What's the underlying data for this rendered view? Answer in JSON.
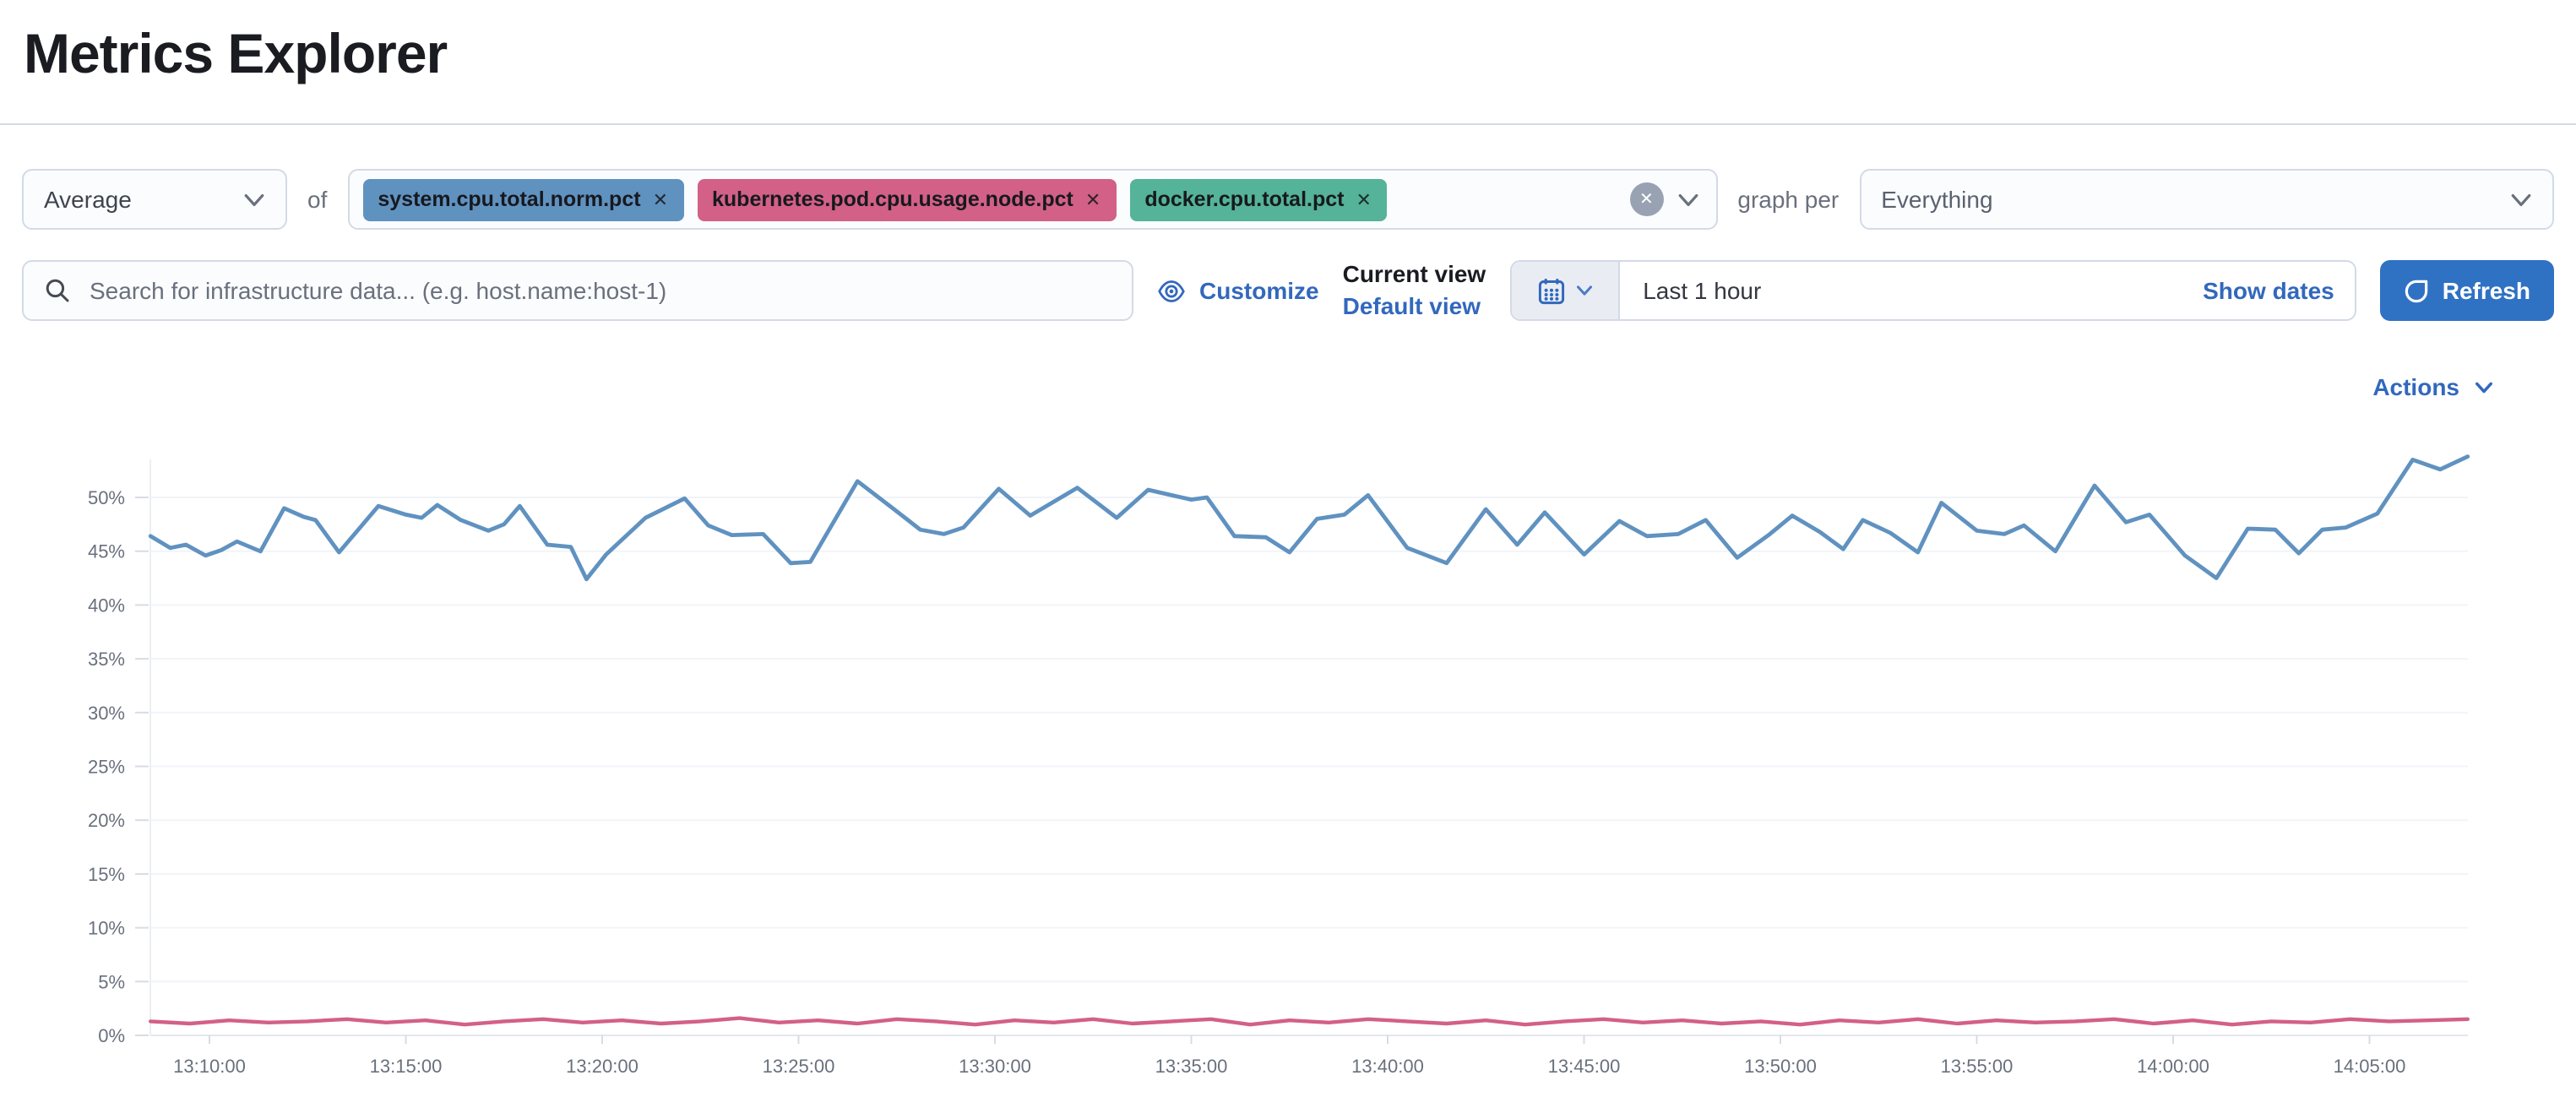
{
  "page": {
    "title": "Metrics Explorer"
  },
  "toolbar": {
    "aggregation": {
      "selected": "Average"
    },
    "of_label": "of",
    "metrics": [
      {
        "label": "system.cpu.total.norm.pct",
        "color": "#6092C0",
        "remove_icon": "cross"
      },
      {
        "label": "kubernetes.pod.cpu.usage.node.pct",
        "color": "#D36086",
        "remove_icon": "cross"
      },
      {
        "label": "docker.cpu.total.pct",
        "color": "#54B399",
        "remove_icon": "cross"
      }
    ],
    "clear_all_icon": "cross-in-circle",
    "graph_per_label": "graph per",
    "group_by": {
      "selected": "Everything"
    }
  },
  "searchbar": {
    "placeholder": "Search for infrastructure data... (e.g. host.name:host-1)",
    "value": "",
    "search_icon": "magnifier",
    "customize_label": "Customize",
    "customize_icon": "eye",
    "current_view_label": "Current view",
    "default_view_label": "Default view",
    "time_picker": {
      "calendar_icon": "calendar",
      "chevron_icon": "chevron-down",
      "range_display": "Last 1 hour",
      "show_dates_label": "Show dates"
    },
    "refresh_label": "Refresh",
    "refresh_icon": "refresh-arrow"
  },
  "chart_header": {
    "actions_label": "Actions",
    "actions_icon": "chevron-down"
  },
  "colors": {
    "link_blue": "#3268bd",
    "button_blue": "#2f72c4",
    "tag_blue": "#6092C0",
    "tag_pink": "#D36086",
    "tag_green": "#54B399",
    "muted_text": "#69707d",
    "dark_text": "#343741",
    "border": "#d3dae6",
    "control_bg": "#fbfcfd",
    "datepicker_segment_bg": "#e9edf3",
    "grid_line": "#f1f4f8"
  },
  "chart_data": {
    "type": "line",
    "title": "",
    "legend": "none",
    "grid": "horizontal",
    "x_axis": {
      "label": "",
      "domain_minutes_after_13_00": [
        8.5,
        67.5
      ],
      "ticks": [
        {
          "minute": 10,
          "label": "13:10:00"
        },
        {
          "minute": 15,
          "label": "13:15:00"
        },
        {
          "minute": 20,
          "label": "13:20:00"
        },
        {
          "minute": 25,
          "label": "13:25:00"
        },
        {
          "minute": 30,
          "label": "13:30:00"
        },
        {
          "minute": 35,
          "label": "13:35:00"
        },
        {
          "minute": 40,
          "label": "13:40:00"
        },
        {
          "minute": 45,
          "label": "13:45:00"
        },
        {
          "minute": 50,
          "label": "13:50:00"
        },
        {
          "minute": 55,
          "label": "13:55:00"
        },
        {
          "minute": 60,
          "label": "14:00:00"
        },
        {
          "minute": 65,
          "label": "14:05:00"
        }
      ]
    },
    "y_axis": {
      "label": "",
      "unit": "%",
      "ylim": [
        0,
        53.5
      ],
      "ticks": [
        "0%",
        "5%",
        "10%",
        "15%",
        "20%",
        "25%",
        "30%",
        "35%",
        "40%",
        "45%",
        "50%"
      ]
    },
    "series": [
      {
        "name": "Average system.cpu.total.norm.pct",
        "color": "#6092C0",
        "points": [
          [
            8.5,
            46.4
          ],
          [
            9,
            45.3
          ],
          [
            9.4,
            45.6
          ],
          [
            9.9,
            44.6
          ],
          [
            10.3,
            45.1
          ],
          [
            10.7,
            45.9
          ],
          [
            11.3,
            45.0
          ],
          [
            11.9,
            49.0
          ],
          [
            12.4,
            48.2
          ],
          [
            12.7,
            47.9
          ],
          [
            13.3,
            44.9
          ],
          [
            14.3,
            49.2
          ],
          [
            15,
            48.4
          ],
          [
            15.4,
            48.1
          ],
          [
            15.8,
            49.3
          ],
          [
            16.4,
            47.9
          ],
          [
            17.1,
            46.9
          ],
          [
            17.5,
            47.5
          ],
          [
            17.9,
            49.2
          ],
          [
            18.6,
            45.6
          ],
          [
            19.2,
            45.4
          ],
          [
            19.6,
            42.4
          ],
          [
            20.1,
            44.7
          ],
          [
            21.1,
            48.1
          ],
          [
            22.1,
            49.9
          ],
          [
            22.7,
            47.4
          ],
          [
            23.3,
            46.5
          ],
          [
            24.1,
            46.6
          ],
          [
            24.8,
            43.9
          ],
          [
            25.3,
            44.0
          ],
          [
            26.5,
            51.5
          ],
          [
            27.4,
            49.0
          ],
          [
            28.1,
            47.0
          ],
          [
            28.7,
            46.6
          ],
          [
            29.2,
            47.2
          ],
          [
            30.1,
            50.8
          ],
          [
            30.9,
            48.3
          ],
          [
            32.1,
            50.9
          ],
          [
            33.1,
            48.1
          ],
          [
            33.9,
            50.7
          ],
          [
            34.5,
            50.2
          ],
          [
            35,
            49.8
          ],
          [
            35.4,
            50.0
          ],
          [
            36.1,
            46.4
          ],
          [
            36.9,
            46.3
          ],
          [
            37.5,
            44.9
          ],
          [
            38.2,
            48.0
          ],
          [
            38.9,
            48.4
          ],
          [
            39.5,
            50.2
          ],
          [
            40.5,
            45.3
          ],
          [
            41.5,
            43.9
          ],
          [
            42.5,
            48.9
          ],
          [
            43.3,
            45.6
          ],
          [
            44,
            48.6
          ],
          [
            45,
            44.7
          ],
          [
            45.9,
            47.8
          ],
          [
            46.6,
            46.4
          ],
          [
            47.4,
            46.6
          ],
          [
            48.1,
            47.9
          ],
          [
            48.9,
            44.4
          ],
          [
            49.7,
            46.5
          ],
          [
            50.3,
            48.3
          ],
          [
            51,
            46.8
          ],
          [
            51.6,
            45.2
          ],
          [
            52.1,
            47.9
          ],
          [
            52.8,
            46.7
          ],
          [
            53.5,
            44.9
          ],
          [
            54.1,
            49.5
          ],
          [
            55,
            46.9
          ],
          [
            55.7,
            46.6
          ],
          [
            56.2,
            47.4
          ],
          [
            57,
            45.0
          ],
          [
            58,
            51.1
          ],
          [
            58.8,
            47.7
          ],
          [
            59.4,
            48.4
          ],
          [
            60.3,
            44.6
          ],
          [
            61.1,
            42.5
          ],
          [
            61.9,
            47.1
          ],
          [
            62.6,
            47.0
          ],
          [
            63.2,
            44.8
          ],
          [
            63.8,
            47.0
          ],
          [
            64.4,
            47.2
          ],
          [
            65.2,
            48.5
          ],
          [
            66.1,
            53.5
          ],
          [
            66.8,
            52.6
          ],
          [
            67.5,
            53.8
          ]
        ]
      },
      {
        "name": "Average kubernetes.pod.cpu.usage.node.pct",
        "color": "#D36086",
        "start_minute": 8.5,
        "step_minutes": 1,
        "values": [
          1.3,
          1.1,
          1.4,
          1.2,
          1.3,
          1.5,
          1.2,
          1.4,
          1.0,
          1.3,
          1.5,
          1.2,
          1.4,
          1.1,
          1.3,
          1.6,
          1.2,
          1.4,
          1.1,
          1.5,
          1.3,
          1.0,
          1.4,
          1.2,
          1.5,
          1.1,
          1.3,
          1.5,
          1.0,
          1.4,
          1.2,
          1.5,
          1.3,
          1.1,
          1.4,
          1.0,
          1.3,
          1.5,
          1.2,
          1.4,
          1.1,
          1.3,
          1.0,
          1.4,
          1.2,
          1.5,
          1.1,
          1.4,
          1.2,
          1.3,
          1.5,
          1.1,
          1.4,
          1.0,
          1.3,
          1.2,
          1.5,
          1.3,
          1.4,
          1.5
        ]
      }
    ]
  }
}
